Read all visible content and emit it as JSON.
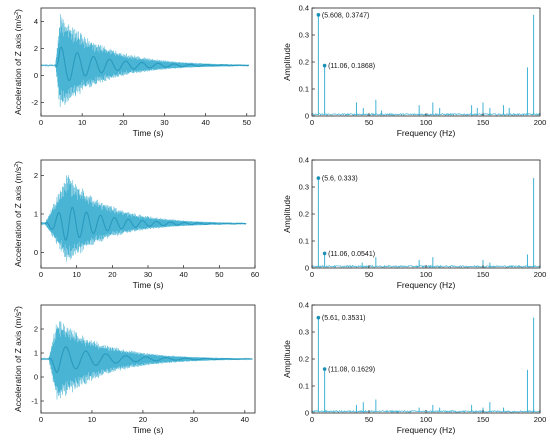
{
  "chart_data": [
    {
      "type": "line",
      "panel": "time",
      "xlabel": "Time (s)",
      "ylabel": "Acceleration of Z axis (m/s",
      "ylabel_sup": "2",
      "ylabel_end": ")",
      "xlim": [
        0,
        52
      ],
      "ylim": [
        -3,
        5
      ],
      "xticks": [
        0,
        10,
        20,
        30,
        40,
        50
      ],
      "yticks": [
        -2,
        0,
        2,
        4
      ],
      "signal": {
        "baseline": 0.75,
        "onset": 3.5,
        "peak_time": 4.6,
        "peak_max": 4.7,
        "peak_min": -2.6,
        "end": 50.5,
        "color": "#2aa7cc"
      }
    },
    {
      "type": "line",
      "panel": "frequency",
      "xlabel": "Frequency (Hz)",
      "ylabel": "Amplitude",
      "xlim": [
        0,
        200
      ],
      "ylim": [
        0,
        0.4
      ],
      "xticks": [
        0,
        50,
        100,
        150,
        200
      ],
      "yticks": [
        0,
        0.1,
        0.2,
        0.3,
        0.4
      ],
      "peaks": [
        {
          "x": 5.608,
          "y": 0.3747
        },
        {
          "x": 11.06,
          "y": 0.1868
        },
        {
          "x": 39,
          "y": 0.05
        },
        {
          "x": 45,
          "y": 0.03
        },
        {
          "x": 56,
          "y": 0.06
        },
        {
          "x": 61,
          "y": 0.02
        },
        {
          "x": 94,
          "y": 0.04
        },
        {
          "x": 106,
          "y": 0.05
        },
        {
          "x": 112,
          "y": 0.03
        },
        {
          "x": 140,
          "y": 0.04
        },
        {
          "x": 145,
          "y": 0.03
        },
        {
          "x": 150,
          "y": 0.05
        },
        {
          "x": 156,
          "y": 0.03
        },
        {
          "x": 168,
          "y": 0.04
        },
        {
          "x": 173,
          "y": 0.03
        },
        {
          "x": 189,
          "y": 0.18
        },
        {
          "x": 194.4,
          "y": 0.3747
        }
      ],
      "annotations": [
        {
          "x": 5.608,
          "y": 0.3747,
          "label": "(5.608, 0.3747)"
        },
        {
          "x": 11.06,
          "y": 0.1868,
          "label": "(11.06, 0.1868)"
        }
      ]
    },
    {
      "type": "line",
      "panel": "time",
      "xlabel": "Time (s)",
      "ylabel": "Acceleration of Z axis (m/s",
      "ylabel_sup": "2",
      "ylabel_end": ")",
      "xlim": [
        0,
        60
      ],
      "ylim": [
        -0.4,
        2.4
      ],
      "xticks": [
        0,
        10,
        20,
        30,
        40,
        50,
        60
      ],
      "yticks": [
        0,
        1,
        2
      ],
      "signal": {
        "baseline": 0.75,
        "onset": 1.0,
        "peak_time": 7.5,
        "peak_max": 2.1,
        "peak_min": -0.3,
        "end": 57.5,
        "color": "#2aa7cc"
      }
    },
    {
      "type": "line",
      "panel": "frequency",
      "xlabel": "Frequency (Hz)",
      "ylabel": "Amplitude",
      "xlim": [
        0,
        200
      ],
      "ylim": [
        0,
        0.4
      ],
      "xticks": [
        0,
        50,
        100,
        150,
        200
      ],
      "yticks": [
        0,
        0.1,
        0.2,
        0.3,
        0.4
      ],
      "peaks": [
        {
          "x": 5.6,
          "y": 0.333
        },
        {
          "x": 11.06,
          "y": 0.0541
        },
        {
          "x": 44,
          "y": 0.02
        },
        {
          "x": 56,
          "y": 0.04
        },
        {
          "x": 94,
          "y": 0.03
        },
        {
          "x": 106,
          "y": 0.04
        },
        {
          "x": 150,
          "y": 0.03
        },
        {
          "x": 156,
          "y": 0.02
        },
        {
          "x": 189,
          "y": 0.05
        },
        {
          "x": 194.4,
          "y": 0.333
        }
      ],
      "annotations": [
        {
          "x": 5.6,
          "y": 0.333,
          "label": "(5.6, 0.333)"
        },
        {
          "x": 11.06,
          "y": 0.0541,
          "label": "(11.06, 0.0541)"
        }
      ]
    },
    {
      "type": "line",
      "panel": "time",
      "xlabel": "Time (s)",
      "ylabel": "Acceleration of Z axis (m/s",
      "ylabel_sup": "2",
      "ylabel_end": ")",
      "xlim": [
        0,
        42
      ],
      "ylim": [
        -1.5,
        3
      ],
      "xticks": [
        0,
        10,
        20,
        30,
        40
      ],
      "yticks": [
        -1,
        0,
        1,
        2
      ],
      "signal": {
        "baseline": 0.75,
        "onset": 1.5,
        "peak_time": 3.2,
        "peak_max": 2.5,
        "peak_min": -1.2,
        "end": 41.5,
        "color": "#2aa7cc"
      }
    },
    {
      "type": "line",
      "panel": "frequency",
      "xlabel": "Frequency (Hz)",
      "ylabel": "Amplitude",
      "xlim": [
        0,
        200
      ],
      "ylim": [
        0,
        0.4
      ],
      "xticks": [
        0,
        50,
        100,
        150,
        200
      ],
      "yticks": [
        0,
        0.1,
        0.2,
        0.3,
        0.4
      ],
      "peaks": [
        {
          "x": 5.61,
          "y": 0.3531
        },
        {
          "x": 11.08,
          "y": 0.1629
        },
        {
          "x": 39,
          "y": 0.03
        },
        {
          "x": 45,
          "y": 0.04
        },
        {
          "x": 56,
          "y": 0.05
        },
        {
          "x": 94,
          "y": 0.02
        },
        {
          "x": 106,
          "y": 0.03
        },
        {
          "x": 112,
          "y": 0.02
        },
        {
          "x": 140,
          "y": 0.03
        },
        {
          "x": 150,
          "y": 0.02
        },
        {
          "x": 156,
          "y": 0.04
        },
        {
          "x": 168,
          "y": 0.02
        },
        {
          "x": 189,
          "y": 0.16
        },
        {
          "x": 194.4,
          "y": 0.3531
        }
      ],
      "annotations": [
        {
          "x": 5.61,
          "y": 0.3531,
          "label": "(5.61, 0.3531)"
        },
        {
          "x": 11.08,
          "y": 0.1629,
          "label": "(11.08, 0.1629)"
        }
      ]
    }
  ]
}
